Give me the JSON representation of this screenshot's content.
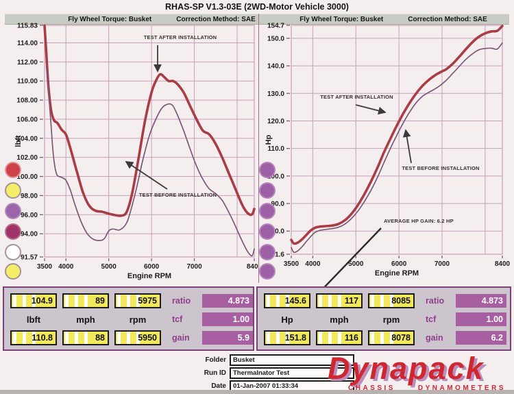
{
  "title": "RHAS-SP V1.3-03E (2WD-Motor Vehicle 3000)",
  "headers": {
    "left": {
      "torque": "Fly Wheel Torque: Busket",
      "correction": "Correction Method: SAE"
    },
    "right": {
      "torque": "Fly Wheel Torque: Busket",
      "correction": "Correction Method: SAE"
    }
  },
  "colors": {
    "after": "#a93c45",
    "before": "#7b5876",
    "grid": "#c99fb8",
    "axis_text": "#1f1b1c",
    "accent_purple": "#a75fa2",
    "label_purple": "#8d3f8a",
    "lcd_yellow": "#f1e85c",
    "logo_red": "#cf2630",
    "logo_shadow": "#bb8fbc"
  },
  "chart_data": [
    {
      "type": "line",
      "title": "Fly Wheel Torque: Busket",
      "xlabel": "Engine RPM",
      "ylabel": "lbft",
      "xlim": [
        3500,
        8400
      ],
      "ylim": [
        91.57,
        115.83
      ],
      "xticks": {
        "values": [
          3500,
          4000,
          5000,
          6000,
          7000,
          8400
        ],
        "labels": [
          "3500",
          "4000",
          "5000",
          "6000",
          "7000",
          "8400"
        ]
      },
      "yticks": {
        "values": [
          115.83,
          114,
          112,
          110,
          108,
          106,
          104,
          102,
          100,
          98,
          96,
          94,
          91.57
        ],
        "labels": [
          "115.83",
          "114.00",
          "112.00",
          "110.00",
          "108.00",
          "106.00",
          "104.00",
          "102.00",
          "100.00",
          "98.00",
          "96.00",
          "94.00",
          "91.57"
        ]
      },
      "vgrid": [
        4000,
        5000,
        6000,
        7000,
        8000
      ],
      "hgrid": [
        114,
        112,
        110,
        108,
        106,
        104,
        102,
        100,
        98,
        96,
        94
      ],
      "grid_on": true,
      "series": [
        {
          "name": "TEST AFTER INSTALLATION",
          "color": "after",
          "width": 3.6,
          "x": [
            3500,
            3540,
            3590,
            3650,
            3720,
            3800,
            3900,
            4000,
            4100,
            4250,
            4400,
            4550,
            4700,
            4850,
            5000,
            5150,
            5300,
            5420,
            5550,
            5700,
            5850,
            6000,
            6100,
            6200,
            6300,
            6400,
            6500,
            6600,
            6750,
            6900,
            7050,
            7200,
            7350,
            7500,
            7650,
            7800,
            7950,
            8100,
            8200,
            8300,
            8360,
            8400
          ],
          "y": [
            115.8,
            113.0,
            109.5,
            107.0,
            105.9,
            105.6,
            104.9,
            104.4,
            103.0,
            100.6,
            98.3,
            96.9,
            96.4,
            96.3,
            96.1,
            95.95,
            95.9,
            96.3,
            98.3,
            102.0,
            105.9,
            108.8,
            110.0,
            110.7,
            110.4,
            110.0,
            110.0,
            109.7,
            108.8,
            107.4,
            106.0,
            104.8,
            104.4,
            103.4,
            102.0,
            100.4,
            98.8,
            97.2,
            96.4,
            96.0,
            96.1,
            96.6
          ]
        },
        {
          "name": "TEST BEFORE INSTALLATION",
          "color": "before",
          "width": 1.7,
          "x": [
            3550,
            3600,
            3650,
            3700,
            3750,
            3800,
            3900,
            4000,
            4100,
            4200,
            4350,
            4500,
            4650,
            4800,
            4900,
            5000,
            5100,
            5250,
            5400,
            5500,
            5650,
            5800,
            5950,
            6100,
            6250,
            6400,
            6500,
            6600,
            6750,
            6900,
            7050,
            7200,
            7350,
            7500,
            7650,
            7800,
            7950,
            8100,
            8250,
            8350,
            8400
          ],
          "y": [
            111.4,
            108.5,
            105.5,
            102.5,
            100.8,
            100.1,
            99.9,
            99.6,
            98.6,
            97.2,
            95.3,
            94.0,
            93.4,
            93.3,
            93.5,
            94.3,
            94.5,
            94.4,
            95.0,
            96.2,
            98.8,
            101.8,
            104.3,
            106.0,
            107.2,
            107.6,
            107.4,
            106.5,
            104.8,
            102.9,
            101.1,
            99.7,
            98.7,
            98.2,
            97.5,
            96.3,
            94.9,
            93.4,
            92.1,
            91.7,
            92.4
          ]
        }
      ],
      "annotations": [
        {
          "text": "TEST AFTER INSTALLATION"
        },
        {
          "text": "TEST BEFORE INSTALLATION"
        }
      ]
    },
    {
      "type": "line",
      "title": "Fly Wheel Torque: Busket",
      "xlabel": "Engine RPM",
      "ylabel": "Hp",
      "xlim": [
        3500,
        8400
      ],
      "ylim": [
        71.6,
        154.7
      ],
      "xticks": {
        "values": [
          3500,
          4000,
          5000,
          6000,
          7000,
          8400
        ],
        "labels": [
          "3500",
          "4000",
          "5000",
          "6000",
          "7000",
          "8400"
        ]
      },
      "yticks": {
        "values": [
          154.7,
          150,
          140,
          130,
          120,
          110,
          100,
          90,
          80,
          71.6
        ],
        "labels": [
          "154.7",
          "150.0",
          "140.0",
          "130.0",
          "120.0",
          "110.0",
          "100.0",
          "90.0",
          "80.0",
          "71.6"
        ]
      },
      "vgrid": [
        4000,
        5000,
        6000,
        7000,
        8000
      ],
      "hgrid": [
        150,
        140,
        130,
        120,
        110,
        100,
        90,
        80
      ],
      "grid_on": true,
      "series": [
        {
          "name": "TEST AFTER INSTALLATION",
          "color": "after",
          "width": 3.6,
          "x": [
            3500,
            3560,
            3650,
            3750,
            3850,
            3950,
            4050,
            4150,
            4300,
            4450,
            4600,
            4750,
            4900,
            5050,
            5200,
            5350,
            5500,
            5650,
            5800,
            5950,
            6100,
            6250,
            6400,
            6550,
            6700,
            6850,
            7000,
            7100,
            7250,
            7400,
            7550,
            7700,
            7850,
            8000,
            8150,
            8280,
            8400
          ],
          "y": [
            76.8,
            75.5,
            75.8,
            77.0,
            78.6,
            80.2,
            81.2,
            81.6,
            81.8,
            82.0,
            82.6,
            84.0,
            86.3,
            89.5,
            93.5,
            98.0,
            103.0,
            108.5,
            113.5,
            118.3,
            122.7,
            126.6,
            130.0,
            132.8,
            135.0,
            136.7,
            138.0,
            138.8,
            140.8,
            143.3,
            146.0,
            148.5,
            150.5,
            151.8,
            152.5,
            152.7,
            154.5
          ]
        },
        {
          "name": "TEST BEFORE INSTALLATION",
          "color": "before",
          "width": 1.7,
          "x": [
            3500,
            3560,
            3650,
            3750,
            3850,
            3950,
            4050,
            4150,
            4300,
            4450,
            4600,
            4750,
            4900,
            5050,
            5200,
            5350,
            5500,
            5650,
            5800,
            5950,
            6100,
            6250,
            6400,
            6550,
            6650,
            6800,
            6950,
            7100,
            7250,
            7400,
            7550,
            7700,
            7850,
            8000,
            8150,
            8280,
            8400
          ],
          "y": [
            74.0,
            72.3,
            72.8,
            74.3,
            76.2,
            78.0,
            79.5,
            80.2,
            80.6,
            80.9,
            81.4,
            82.6,
            84.6,
            87.3,
            90.8,
            94.8,
            99.5,
            104.8,
            110.0,
            114.8,
            119.3,
            123.3,
            126.6,
            129.0,
            130.0,
            131.3,
            132.8,
            134.8,
            137.3,
            139.8,
            142.3,
            144.3,
            145.8,
            146.3,
            146.4,
            146.1,
            148.3
          ]
        }
      ],
      "annotations": [
        {
          "text": "TEST AFTER INSTALLATION"
        },
        {
          "text": "TEST BEFORE INSTALLATION"
        },
        {
          "text": "AVERAGE HP GAIN: 6.2 HP"
        }
      ]
    }
  ],
  "series_dots": {
    "left": [
      {
        "fill": "#cf4146",
        "ring": "#e0989b"
      },
      {
        "fill": "#f4ed68",
        "ring": "#a3929e"
      },
      {
        "fill": "#9c64ab",
        "ring": "#b18cba"
      },
      {
        "fill": "#a03468",
        "ring": "#b4728f"
      },
      {
        "fill": "#ffffff",
        "ring": "#a3929e"
      },
      {
        "fill": "#f4ed68",
        "ring": "#a3929e"
      }
    ],
    "right": [
      {
        "fill": "#9d5fa5",
        "ring": "#b685bc"
      },
      {
        "fill": "#9d5fa5",
        "ring": "#b685bc"
      },
      {
        "fill": "#9d5fa5",
        "ring": "#b685bc"
      },
      {
        "fill": "#9d5fa5",
        "ring": "#b685bc"
      },
      {
        "fill": "#9d5fa5",
        "ring": "#b685bc"
      },
      {
        "fill": "#9d5fa5",
        "ring": "#b685bc"
      }
    ]
  },
  "panels": [
    {
      "top": [
        "104.9",
        "89",
        "5975"
      ],
      "units": [
        "lbft",
        "mph",
        "rpm"
      ],
      "bottom": [
        "110.8",
        "88",
        "5950"
      ],
      "side": [
        {
          "label": "ratio",
          "value": "4.873"
        },
        {
          "label": "tcf",
          "value": "1.00"
        },
        {
          "label": "gain",
          "value": "5.9"
        }
      ]
    },
    {
      "top": [
        "145.6",
        "117",
        "8085"
      ],
      "units": [
        "Hp",
        "mph",
        "rpm"
      ],
      "bottom": [
        "151.8",
        "116",
        "8078"
      ],
      "side": [
        {
          "label": "ratio",
          "value": "4.873"
        },
        {
          "label": "tcf",
          "value": "1.00"
        },
        {
          "label": "gain",
          "value": "6.2"
        }
      ]
    }
  ],
  "footer": {
    "fields": [
      {
        "label": "Folder",
        "value": "Busket"
      },
      {
        "label": "Run ID",
        "value": "Thermalnator Test"
      },
      {
        "label": "Date",
        "value": "01-Jan-2007 01:33:34"
      }
    ],
    "logo": {
      "name": "Dynapack",
      "tagline_left": "CHASSIS",
      "tagline_right": "DYNAMOMETERS"
    }
  }
}
